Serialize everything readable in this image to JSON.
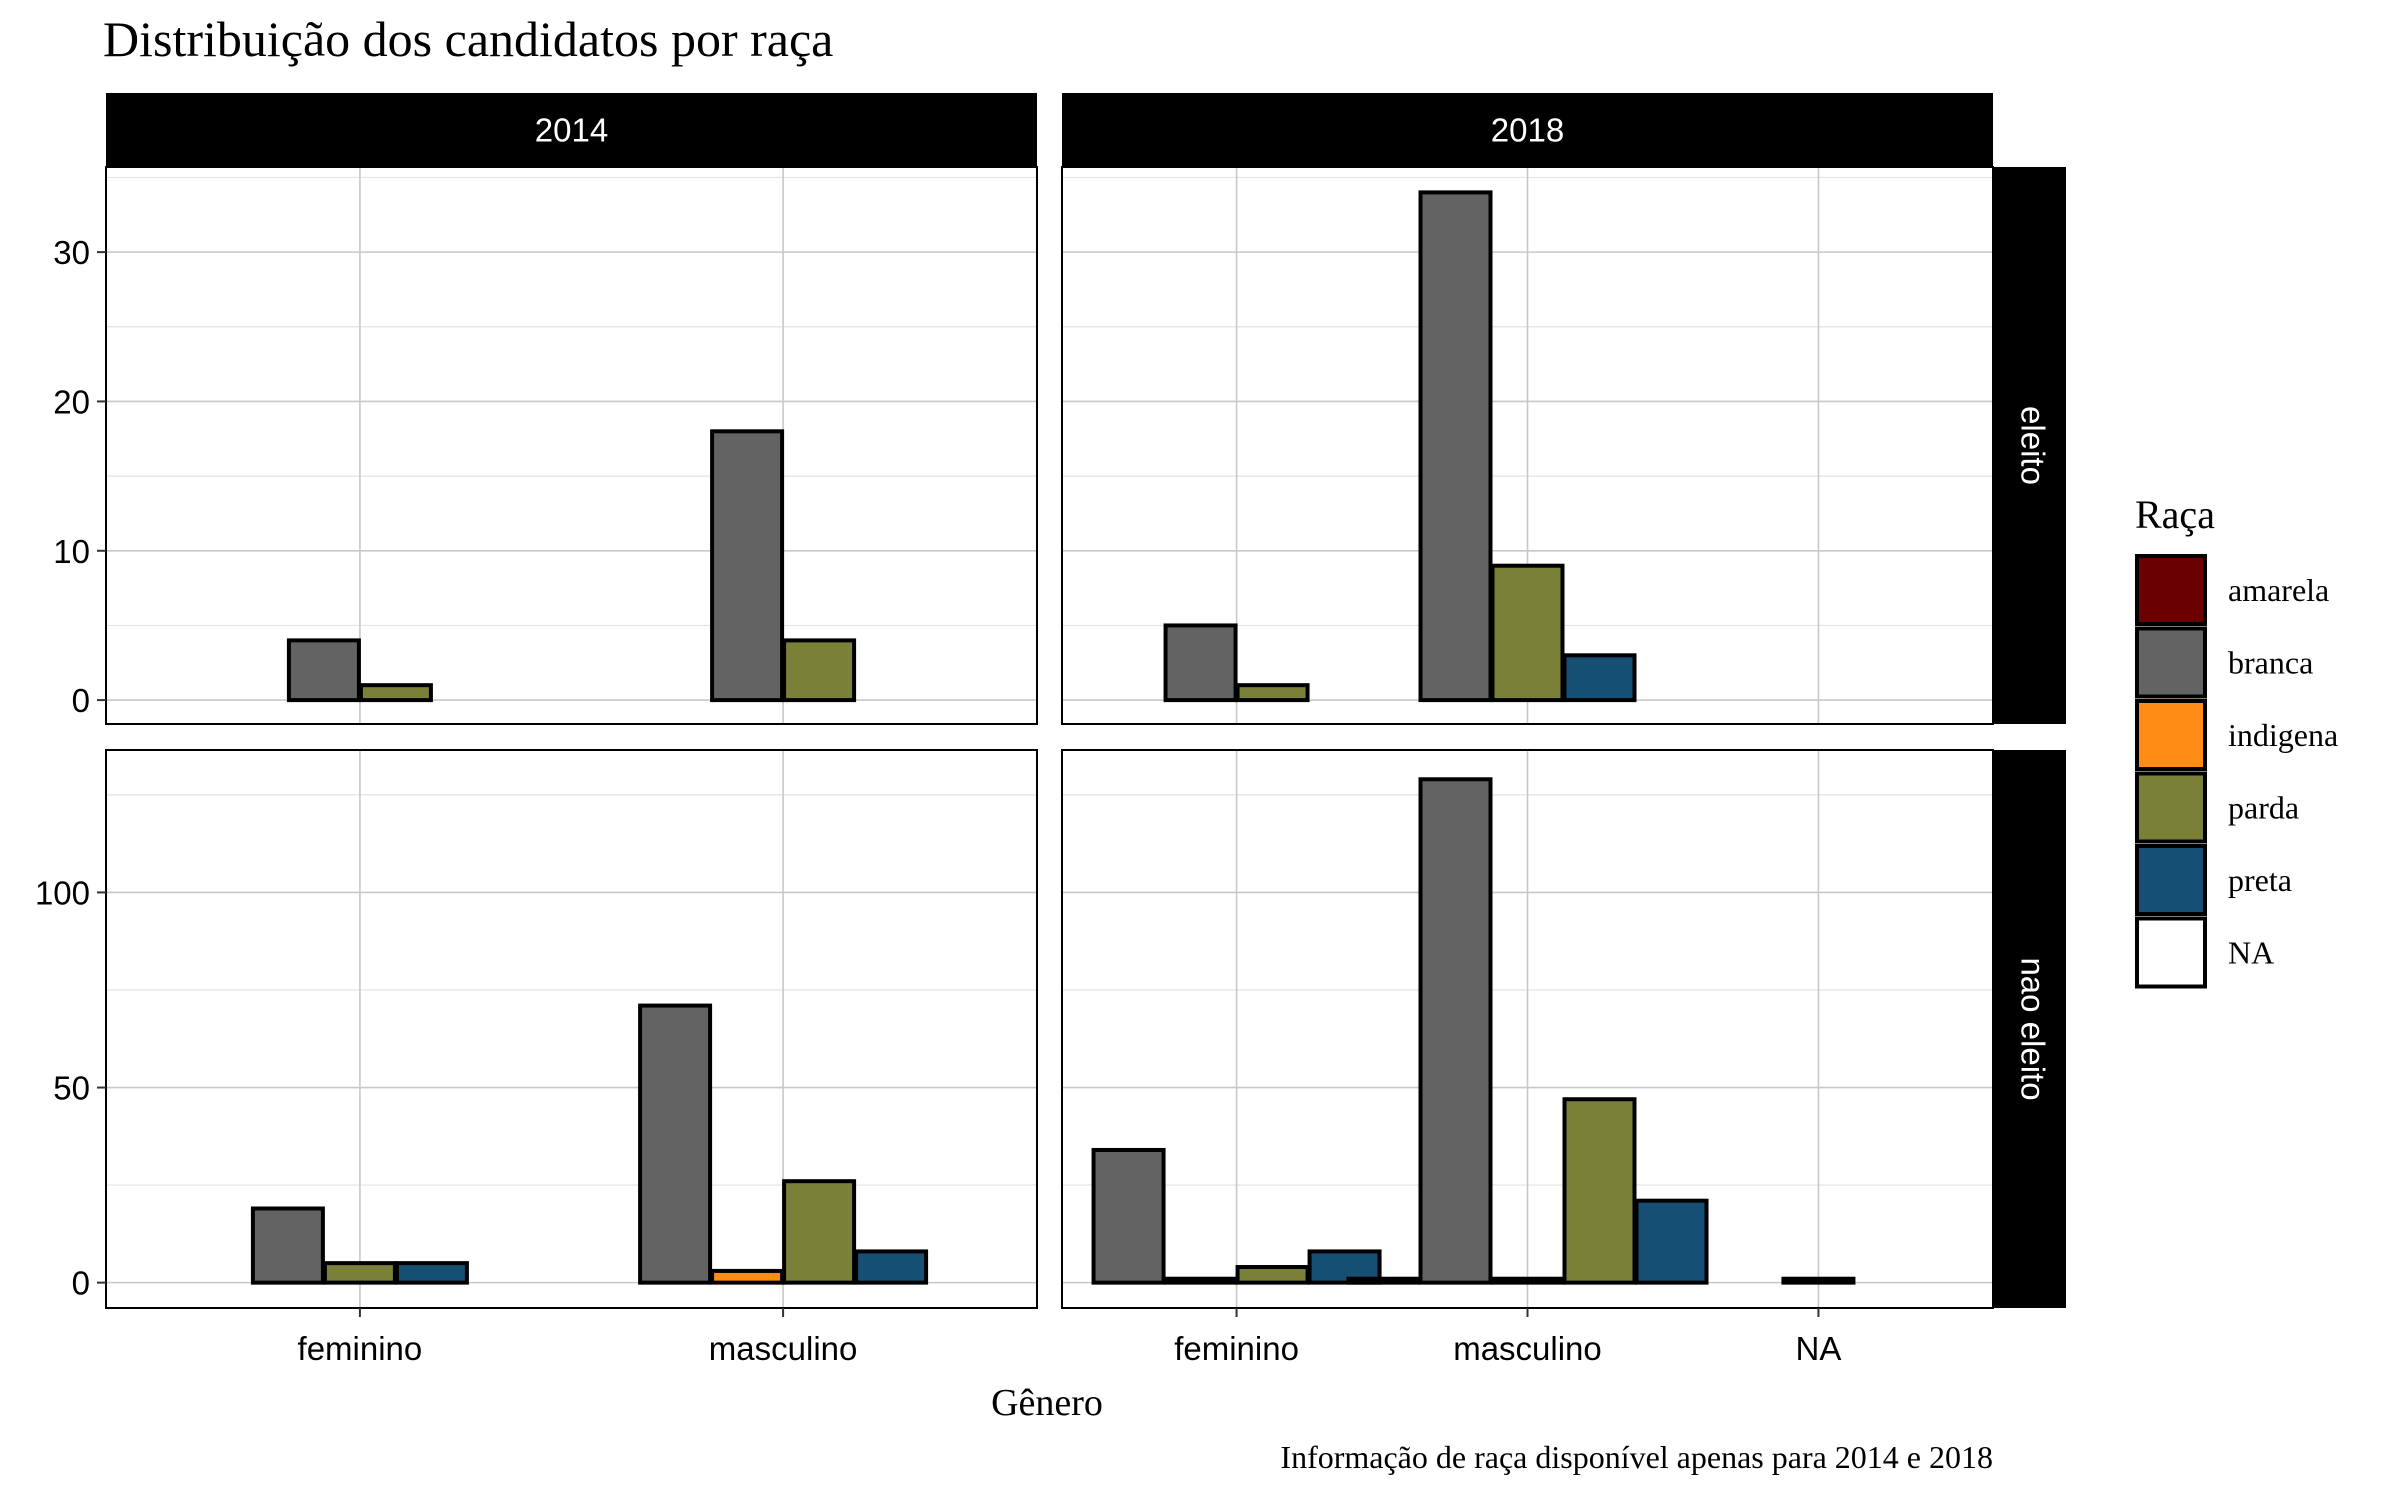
{
  "chart_data": {
    "type": "bar",
    "title": "Distribuição dos candidatos por raça",
    "xlabel": "Gênero",
    "ylabel": "",
    "caption": "Informação de raça disponível apenas para 2014 e 2018",
    "legend": {
      "title": "Raça",
      "placement": "right",
      "entries": [
        {
          "name": "amarela",
          "color": "#6B0000"
        },
        {
          "name": "branca",
          "color": "#636363"
        },
        {
          "name": "indigena",
          "color": "#FF8C14"
        },
        {
          "name": "parda",
          "color": "#7A8037"
        },
        {
          "name": "preta",
          "color": "#154F74"
        },
        {
          "name": "NA",
          "color": "#FFFFFF"
        }
      ]
    },
    "grid": true,
    "facet_columns": [
      {
        "label": "2014",
        "categories": [
          "feminino",
          "masculino"
        ]
      },
      {
        "label": "2018",
        "categories": [
          "feminino",
          "masculino",
          "NA"
        ]
      }
    ],
    "facet_rows": [
      {
        "label": "eleito",
        "ylim": [
          -1.6,
          35.7
        ],
        "yticks": [
          0,
          10,
          20,
          30
        ]
      },
      {
        "label": "nao eleito",
        "ylim": [
          -6.5,
          136.5
        ],
        "yticks": [
          0,
          50,
          100
        ]
      }
    ],
    "panels": [
      {
        "row": 0,
        "col": 0,
        "groups": [
          {
            "category": "feminino",
            "bars": [
              {
                "race": "branca",
                "value": 4
              },
              {
                "race": "parda",
                "value": 1
              }
            ]
          },
          {
            "category": "masculino",
            "bars": [
              {
                "race": "branca",
                "value": 18
              },
              {
                "race": "parda",
                "value": 4
              }
            ]
          }
        ]
      },
      {
        "row": 0,
        "col": 1,
        "groups": [
          {
            "category": "feminino",
            "bars": [
              {
                "race": "branca",
                "value": 5
              },
              {
                "race": "parda",
                "value": 1
              }
            ]
          },
          {
            "category": "masculino",
            "bars": [
              {
                "race": "branca",
                "value": 34
              },
              {
                "race": "parda",
                "value": 9
              },
              {
                "race": "preta",
                "value": 3
              }
            ]
          },
          {
            "category": "NA",
            "bars": []
          }
        ]
      },
      {
        "row": 1,
        "col": 0,
        "groups": [
          {
            "category": "feminino",
            "bars": [
              {
                "race": "branca",
                "value": 19
              },
              {
                "race": "parda",
                "value": 5
              },
              {
                "race": "preta",
                "value": 5
              }
            ]
          },
          {
            "category": "masculino",
            "bars": [
              {
                "race": "branca",
                "value": 71
              },
              {
                "race": "indigena",
                "value": 3
              },
              {
                "race": "parda",
                "value": 26
              },
              {
                "race": "preta",
                "value": 8
              }
            ]
          }
        ]
      },
      {
        "row": 1,
        "col": 1,
        "groups": [
          {
            "category": "feminino",
            "bars": [
              {
                "race": "branca",
                "value": 34
              },
              {
                "race": "NA",
                "value": 1
              },
              {
                "race": "parda",
                "value": 4
              },
              {
                "race": "preta",
                "value": 8
              }
            ]
          },
          {
            "category": "masculino",
            "bars": [
              {
                "race": "amarela",
                "value": 1
              },
              {
                "race": "branca",
                "value": 129
              },
              {
                "race": "NA",
                "value": 1
              },
              {
                "race": "parda",
                "value": 47
              },
              {
                "race": "preta",
                "value": 21
              }
            ]
          },
          {
            "category": "NA",
            "bars": [
              {
                "race": "NA",
                "value": 1
              }
            ]
          }
        ]
      }
    ]
  }
}
